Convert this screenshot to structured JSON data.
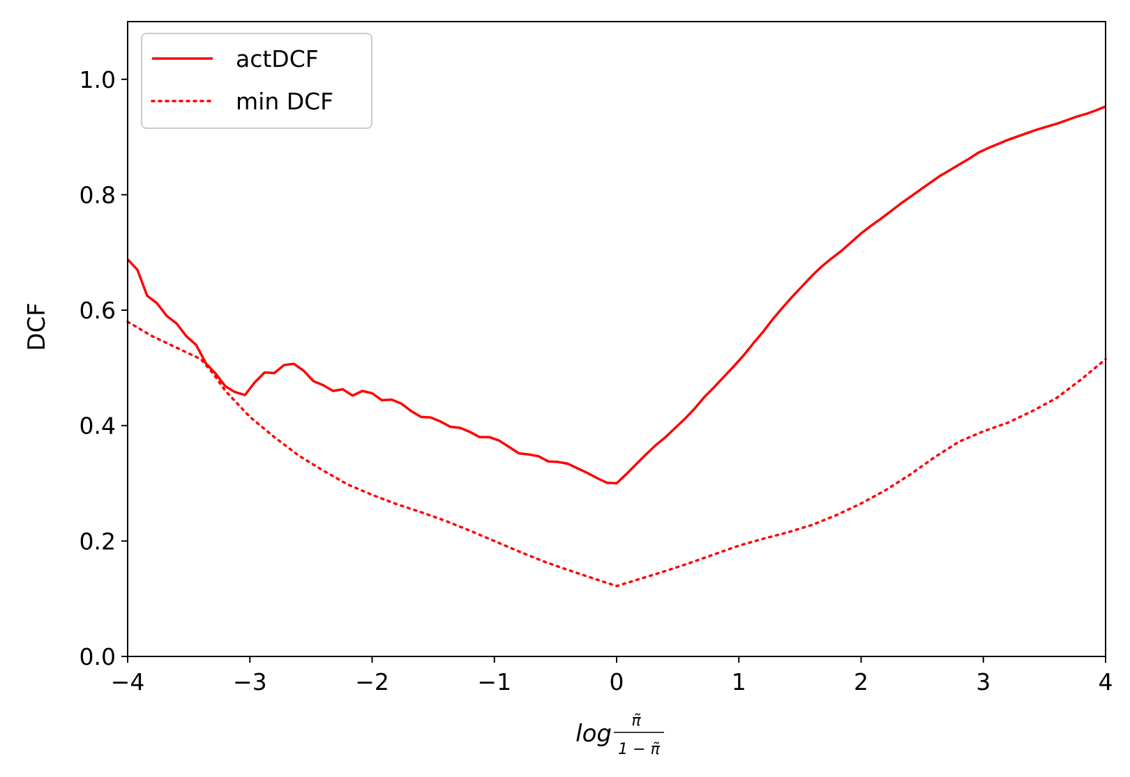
{
  "chart_data": {
    "type": "line",
    "title": "",
    "xlabel": "log",
    "xlabel_sub_num": "π̃",
    "xlabel_sub_den": "1 − π̃",
    "ylabel": "DCF",
    "xlim": [
      -4,
      4
    ],
    "ylim": [
      0,
      1.1
    ],
    "xticks": [
      -4,
      -3,
      -2,
      -1,
      0,
      1,
      2,
      3,
      4
    ],
    "xtick_labels": [
      "−4",
      "−3",
      "−2",
      "−1",
      "0",
      "1",
      "2",
      "3",
      "4"
    ],
    "yticks": [
      0.0,
      0.2,
      0.4,
      0.6,
      0.8,
      1.0
    ],
    "ytick_labels": [
      "0.0",
      "0.2",
      "0.4",
      "0.6",
      "0.8",
      "1.0"
    ],
    "grid": false,
    "legend_position": "top-left",
    "series": [
      {
        "name": "actDCF",
        "color": "#ff0000",
        "style": "solid",
        "points": [
          [
            -4.0,
            0.688
          ],
          [
            -3.92,
            0.67
          ],
          [
            -3.84,
            0.625
          ],
          [
            -3.76,
            0.612
          ],
          [
            -3.68,
            0.59
          ],
          [
            -3.6,
            0.577
          ],
          [
            -3.52,
            0.555
          ],
          [
            -3.44,
            0.54
          ],
          [
            -3.36,
            0.508
          ],
          [
            -3.28,
            0.49
          ],
          [
            -3.2,
            0.468
          ],
          [
            -3.12,
            0.458
          ],
          [
            -3.04,
            0.453
          ],
          [
            -2.96,
            0.475
          ],
          [
            -2.88,
            0.492
          ],
          [
            -2.8,
            0.491
          ],
          [
            -2.72,
            0.505
          ],
          [
            -2.64,
            0.507
          ],
          [
            -2.56,
            0.495
          ],
          [
            -2.48,
            0.477
          ],
          [
            -2.4,
            0.47
          ],
          [
            -2.32,
            0.46
          ],
          [
            -2.24,
            0.463
          ],
          [
            -2.16,
            0.452
          ],
          [
            -2.08,
            0.46
          ],
          [
            -2.0,
            0.456
          ],
          [
            -1.92,
            0.444
          ],
          [
            -1.84,
            0.445
          ],
          [
            -1.76,
            0.438
          ],
          [
            -1.68,
            0.425
          ],
          [
            -1.6,
            0.415
          ],
          [
            -1.52,
            0.414
          ],
          [
            -1.44,
            0.407
          ],
          [
            -1.36,
            0.398
          ],
          [
            -1.28,
            0.396
          ],
          [
            -1.2,
            0.389
          ],
          [
            -1.12,
            0.38
          ],
          [
            -1.04,
            0.38
          ],
          [
            -0.96,
            0.374
          ],
          [
            -0.88,
            0.363
          ],
          [
            -0.8,
            0.352
          ],
          [
            -0.72,
            0.35
          ],
          [
            -0.64,
            0.347
          ],
          [
            -0.56,
            0.338
          ],
          [
            -0.48,
            0.337
          ],
          [
            -0.4,
            0.334
          ],
          [
            -0.32,
            0.326
          ],
          [
            -0.24,
            0.318
          ],
          [
            -0.16,
            0.309
          ],
          [
            -0.08,
            0.301
          ],
          [
            0.0,
            0.3
          ],
          [
            0.08,
            0.316
          ],
          [
            0.16,
            0.333
          ],
          [
            0.24,
            0.35
          ],
          [
            0.32,
            0.366
          ],
          [
            0.4,
            0.38
          ],
          [
            0.48,
            0.396
          ],
          [
            0.56,
            0.412
          ],
          [
            0.64,
            0.43
          ],
          [
            0.72,
            0.45
          ],
          [
            0.8,
            0.467
          ],
          [
            0.88,
            0.485
          ],
          [
            0.96,
            0.503
          ],
          [
            1.04,
            0.522
          ],
          [
            1.12,
            0.543
          ],
          [
            1.2,
            0.563
          ],
          [
            1.28,
            0.585
          ],
          [
            1.36,
            0.605
          ],
          [
            1.44,
            0.624
          ],
          [
            1.52,
            0.642
          ],
          [
            1.6,
            0.66
          ],
          [
            1.68,
            0.676
          ],
          [
            1.76,
            0.69
          ],
          [
            1.84,
            0.703
          ],
          [
            1.92,
            0.718
          ],
          [
            2.0,
            0.733
          ],
          [
            2.08,
            0.746
          ],
          [
            2.16,
            0.758
          ],
          [
            2.24,
            0.771
          ],
          [
            2.32,
            0.784
          ],
          [
            2.4,
            0.796
          ],
          [
            2.48,
            0.808
          ],
          [
            2.56,
            0.82
          ],
          [
            2.64,
            0.832
          ],
          [
            2.72,
            0.842
          ],
          [
            2.8,
            0.852
          ],
          [
            2.88,
            0.862
          ],
          [
            2.96,
            0.873
          ],
          [
            3.04,
            0.881
          ],
          [
            3.12,
            0.888
          ],
          [
            3.2,
            0.895
          ],
          [
            3.28,
            0.901
          ],
          [
            3.36,
            0.907
          ],
          [
            3.44,
            0.913
          ],
          [
            3.52,
            0.918
          ],
          [
            3.6,
            0.923
          ],
          [
            3.68,
            0.929
          ],
          [
            3.76,
            0.935
          ],
          [
            3.84,
            0.94
          ],
          [
            3.92,
            0.946
          ],
          [
            4.0,
            0.953
          ]
        ]
      },
      {
        "name": "min DCF",
        "color": "#ff0000",
        "style": "dotted",
        "points": [
          [
            -4.0,
            0.58
          ],
          [
            -3.8,
            0.555
          ],
          [
            -3.6,
            0.535
          ],
          [
            -3.4,
            0.515
          ],
          [
            -3.3,
            0.49
          ],
          [
            -3.2,
            0.46
          ],
          [
            -3.0,
            0.415
          ],
          [
            -2.8,
            0.38
          ],
          [
            -2.6,
            0.348
          ],
          [
            -2.4,
            0.322
          ],
          [
            -2.2,
            0.298
          ],
          [
            -2.0,
            0.28
          ],
          [
            -1.8,
            0.264
          ],
          [
            -1.6,
            0.25
          ],
          [
            -1.4,
            0.235
          ],
          [
            -1.2,
            0.218
          ],
          [
            -1.0,
            0.2
          ],
          [
            -0.8,
            0.182
          ],
          [
            -0.6,
            0.165
          ],
          [
            -0.4,
            0.15
          ],
          [
            -0.2,
            0.136
          ],
          [
            0.0,
            0.122
          ],
          [
            0.2,
            0.135
          ],
          [
            0.4,
            0.148
          ],
          [
            0.6,
            0.162
          ],
          [
            0.8,
            0.177
          ],
          [
            1.0,
            0.192
          ],
          [
            1.2,
            0.204
          ],
          [
            1.4,
            0.215
          ],
          [
            1.6,
            0.228
          ],
          [
            1.8,
            0.245
          ],
          [
            2.0,
            0.265
          ],
          [
            2.2,
            0.288
          ],
          [
            2.4,
            0.315
          ],
          [
            2.6,
            0.345
          ],
          [
            2.8,
            0.372
          ],
          [
            3.0,
            0.39
          ],
          [
            3.2,
            0.405
          ],
          [
            3.4,
            0.425
          ],
          [
            3.6,
            0.448
          ],
          [
            3.8,
            0.48
          ],
          [
            4.0,
            0.515
          ]
        ]
      }
    ]
  }
}
